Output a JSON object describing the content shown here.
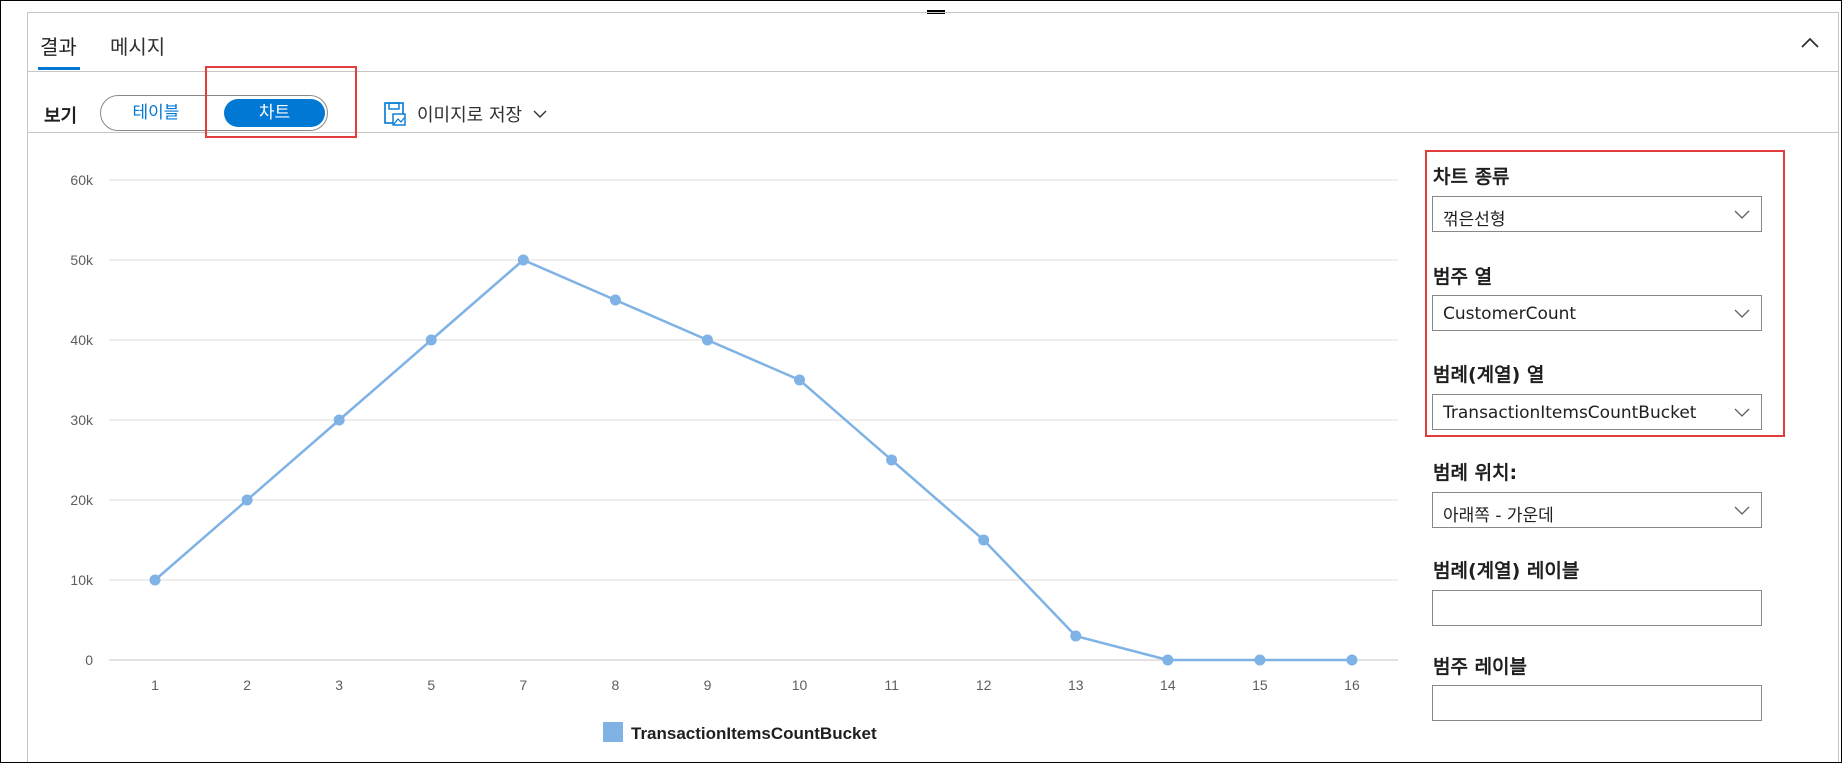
{
  "tabs": {
    "results": "결과",
    "messages": "메시지"
  },
  "toolbar": {
    "view_label": "보기",
    "toggle_table": "테이블",
    "toggle_chart": "차트",
    "save_as_image": "이미지로 저장"
  },
  "icons": {
    "collapse": "chevron-up-icon",
    "save": "save-image-icon",
    "dropdown": "chevron-down-icon"
  },
  "colors": {
    "accent": "#0078d4",
    "series": "#7fb2e5",
    "highlight": "#e23d3d"
  },
  "options": {
    "chart_type": {
      "label": "차트 종류",
      "value": "꺾은선형"
    },
    "category_column": {
      "label": "범주 열",
      "value": "CustomerCount"
    },
    "legend_column": {
      "label": "범례(계열) 열",
      "value": "TransactionItemsCountBucket"
    },
    "legend_position": {
      "label": "범례 위치:",
      "value": "아래쪽 - 가운데"
    },
    "legend_label": {
      "label": "범례(계열) 레이블",
      "value": ""
    },
    "category_label": {
      "label": "범주 레이블",
      "value": ""
    }
  },
  "chart_data": {
    "type": "line",
    "categories": [
      "1",
      "2",
      "3",
      "5",
      "7",
      "8",
      "9",
      "10",
      "11",
      "12",
      "13",
      "14",
      "15",
      "16"
    ],
    "series": [
      {
        "name": "TransactionItemsCountBucket",
        "values": [
          10000,
          20000,
          30000,
          40000,
          50000,
          45000,
          40000,
          35000,
          25000,
          15000,
          3000,
          0,
          0,
          0
        ]
      }
    ],
    "yticks": [
      "0",
      "10k",
      "20k",
      "30k",
      "40k",
      "50k",
      "60k"
    ],
    "ylim": [
      0,
      60000
    ],
    "grid": true,
    "legend_position": "bottom-center"
  }
}
